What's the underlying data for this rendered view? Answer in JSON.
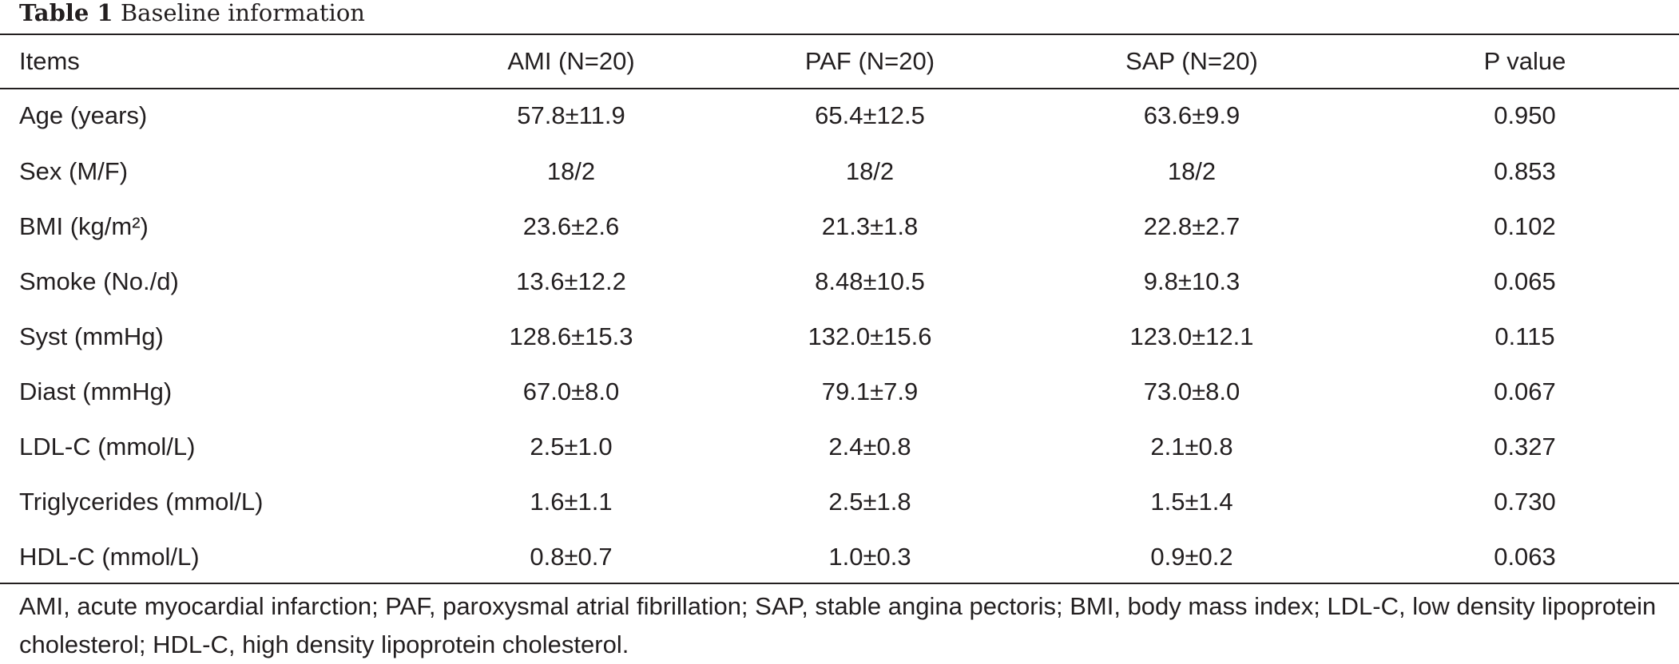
{
  "caption": {
    "label": "Table 1",
    "text": "Baseline information"
  },
  "table": {
    "headers": [
      "Items",
      "AMI (N=20)",
      "PAF (N=20)",
      "SAP (N=20)",
      "P value"
    ],
    "rows": [
      [
        "Age (years)",
        "57.8±11.9",
        "65.4±12.5",
        "63.6±9.9",
        "0.950"
      ],
      [
        "Sex (M/F)",
        "18/2",
        "18/2",
        "18/2",
        "0.853"
      ],
      [
        "BMI (kg/m²)",
        "23.6±2.6",
        "21.3±1.8",
        "22.8±2.7",
        "0.102"
      ],
      [
        "Smoke (No./d)",
        "13.6±12.2",
        "8.48±10.5",
        "9.8±10.3",
        "0.065"
      ],
      [
        "Syst (mmHg)",
        "128.6±15.3",
        "132.0±15.6",
        "123.0±12.1",
        "0.115"
      ],
      [
        "Diast (mmHg)",
        "67.0±8.0",
        "79.1±7.9",
        "73.0±8.0",
        "0.067"
      ],
      [
        "LDL-C (mmol/L)",
        "2.5±1.0",
        "2.4±0.8",
        "2.1±0.8",
        "0.327"
      ],
      [
        "Triglycerides (mmol/L)",
        "1.6±1.1",
        "2.5±1.8",
        "1.5±1.4",
        "0.730"
      ],
      [
        "HDL-C (mmol/L)",
        "0.8±0.7",
        "1.0±0.3",
        "0.9±0.2",
        "0.063"
      ]
    ]
  },
  "footnote": "AMI, acute myocardial infarction; PAF, paroxysmal atrial fibrillation; SAP, stable angina pectoris; BMI, body mass index; LDL-C, low density lipoprotein cholesterol; HDL-C, high density lipoprotein cholesterol."
}
